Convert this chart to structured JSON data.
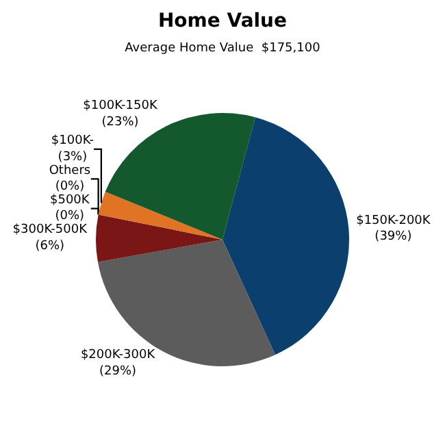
{
  "chart_data": {
    "type": "pie",
    "title": "Home Value",
    "subtitle": "Average Home Value  $175,100",
    "categories": [
      "$150K-200K",
      "$200K-300K",
      "$300K-500K",
      "$500K",
      "Others",
      "$100K-",
      "$100K-150K"
    ],
    "values": [
      39,
      29,
      6,
      0,
      0,
      3,
      23
    ],
    "value_labels": [
      "(39%)",
      "(29%)",
      "(6%)",
      "(0%)",
      "(0%)",
      "(3%)",
      "(23%)"
    ],
    "colors": [
      "#0b3f6e",
      "#5c5c5c",
      "#7a1616",
      "#a02020",
      "#c04040",
      "#e07424",
      "#14592e"
    ],
    "legend": false
  }
}
